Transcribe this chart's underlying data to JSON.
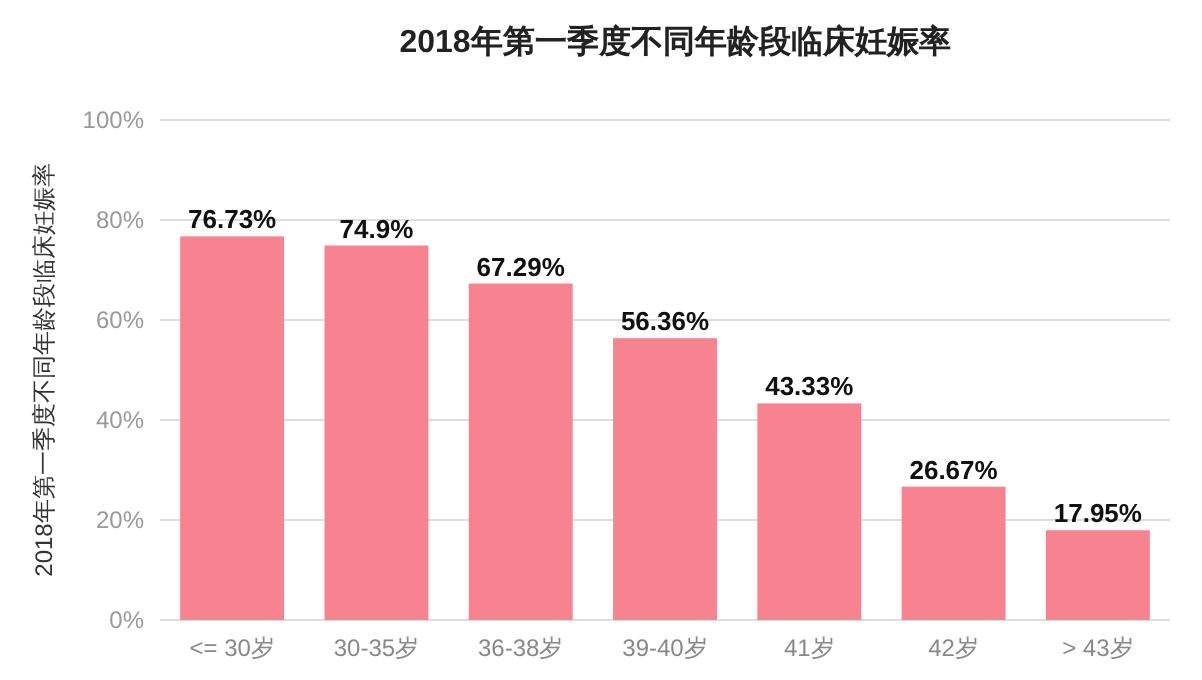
{
  "chart_data": {
    "type": "bar",
    "title": "2018年第一季度不同年龄段临床妊娠率",
    "ylabel": "2018年第一季度不同年龄段临床妊娠率",
    "categories": [
      "<= 30岁",
      "30-35岁",
      "36-38岁",
      "39-40岁",
      "41岁",
      "42岁",
      "> 43岁"
    ],
    "values": [
      76.73,
      74.9,
      67.29,
      56.36,
      43.33,
      26.67,
      17.95
    ],
    "value_labels": [
      "76.73%",
      "74.9%",
      "67.29%",
      "56.36%",
      "43.33%",
      "26.67%",
      "17.95%"
    ],
    "color": "#f7838f",
    "ylim": [
      0,
      100
    ],
    "yticks": [
      {
        "value": 0,
        "label": "0%"
      },
      {
        "value": 20,
        "label": "20%"
      },
      {
        "value": 40,
        "label": "40%"
      },
      {
        "value": 60,
        "label": "60%"
      },
      {
        "value": 80,
        "label": "80%"
      },
      {
        "value": 100,
        "label": "100%"
      }
    ],
    "grid": "y"
  }
}
